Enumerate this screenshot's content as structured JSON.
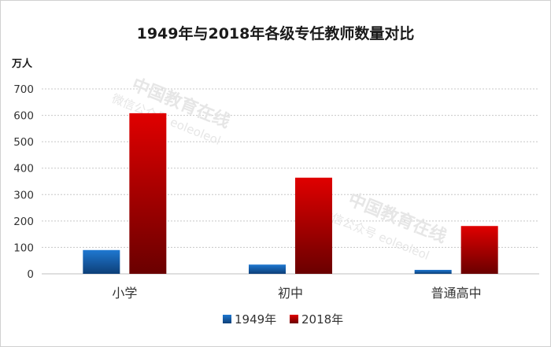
{
  "chart_data": {
    "type": "bar",
    "title": "1949年与2018年各级专任教师数量对比",
    "unit_label": "万人",
    "categories": [
      "小学",
      "初中",
      "普通高中"
    ],
    "series": [
      {
        "name": "1949年",
        "values": [
          90,
          35,
          15
        ],
        "color": "#1f6fc2"
      },
      {
        "name": "2018年",
        "values": [
          608,
          364,
          181
        ],
        "color": "#c00000"
      }
    ],
    "yticks": [
      0,
      100,
      200,
      300,
      400,
      500,
      600,
      700
    ],
    "ylim": [
      0,
      700
    ],
    "grid": true,
    "legend_position": "bottom"
  },
  "watermark": {
    "text": "中国教育在线",
    "subtext": "微信公众号 eoleoleol"
  }
}
